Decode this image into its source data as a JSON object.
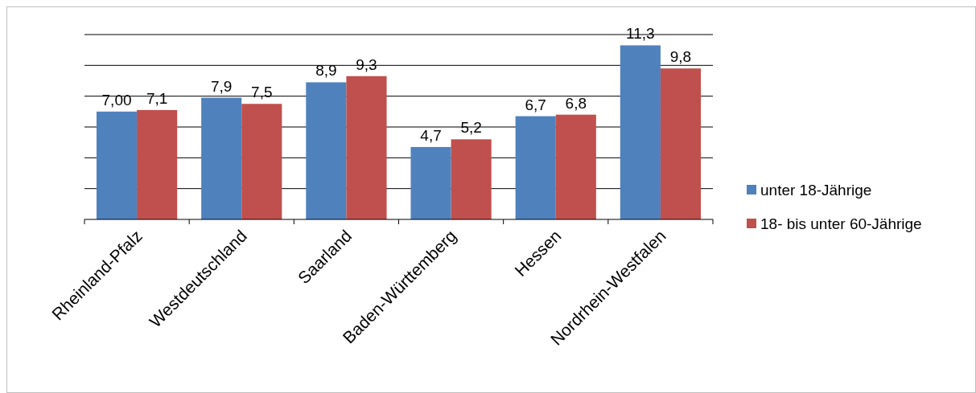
{
  "chart_data": {
    "type": "bar",
    "categories": [
      "Rheinland-Pfalz",
      "Westdeutschland",
      "Saarland",
      "Baden-Württemberg",
      "Hessen",
      "Nordrhein-Westfalen"
    ],
    "series": [
      {
        "name": "unter 18-Jährige",
        "color": "#4f81bd",
        "values": [
          7.0,
          7.9,
          8.9,
          4.7,
          6.7,
          11.3
        ],
        "value_labels": [
          "7,00",
          "7,9",
          "8,9",
          "4,7",
          "6,7",
          "11,3"
        ]
      },
      {
        "name": "18- bis unter 60-Jährige",
        "color": "#c0504d",
        "values": [
          7.1,
          7.5,
          9.3,
          5.2,
          6.8,
          9.8
        ],
        "value_labels": [
          "7,1",
          "7,5",
          "9,3",
          "5,2",
          "6,8",
          "9,8"
        ]
      }
    ],
    "ylim": [
      0,
      12
    ],
    "yticks": [
      {
        "value": 0,
        "label": null
      },
      {
        "value": 2,
        "label": null
      },
      {
        "value": 4,
        "label": null
      },
      {
        "value": 6,
        "label": null
      },
      {
        "value": 8,
        "label": null
      },
      {
        "value": 10,
        "label": null
      },
      {
        "value": 12,
        "label": null
      }
    ],
    "tick_labels": "x",
    "grid": "y",
    "legend": "right"
  }
}
